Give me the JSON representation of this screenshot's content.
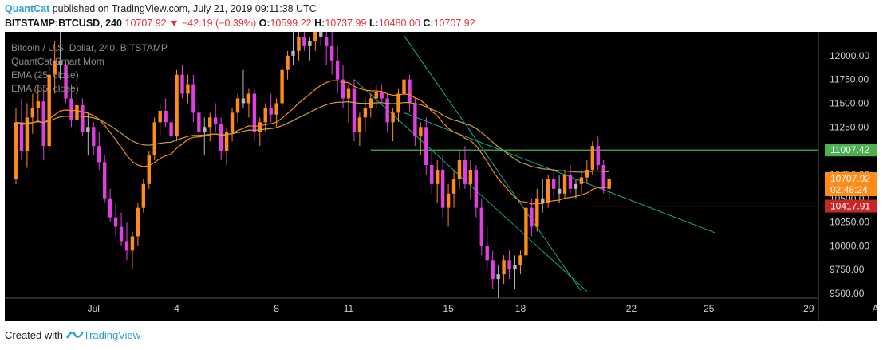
{
  "header": {
    "author": "QuantCat",
    "published": "published on TradingView.com, July 21, 2019 09:11:38 UTC",
    "symbol": "BITSTAMP:BTCUSD, 240",
    "last": "10707.92",
    "change_arrow": "▼",
    "change": "−42.19 (−0.39%)",
    "o_label": "O:",
    "o_val": "10599.22",
    "h_label": "H:",
    "h_val": "10737.99",
    "l_label": "L:",
    "l_val": "10480.00",
    "c_label": "C:",
    "c_val": "10707.92"
  },
  "legend": {
    "title": "Bitcoin / U.S. Dollar, 240, BITSTAMP",
    "indicator1": "QuantCat Smart Mom",
    "indicator2": "EMA (25, close)",
    "indicator3": "EMA (55, close)"
  },
  "footer": {
    "created_with": "Created with",
    "brand": "TradingView"
  },
  "colors": {
    "background": "#000000",
    "bull_candle": "#ff8c1a",
    "bear_candle": "#e040e0",
    "neutral_candle": "#b8b8b8",
    "ema25": "#ff8c1a",
    "ema55": "#c8a040",
    "trendline": "#1aa890",
    "resistance": "#4caf50",
    "support": "#c62828",
    "axis_text": "#d0d0d0"
  },
  "chart_data": {
    "type": "candlestick",
    "title": "Bitcoin / U.S. Dollar, 240, BITSTAMP",
    "ylim": [
      9450,
      12250
    ],
    "y_ticks": [
      "12000.00",
      "11750.00",
      "11500.00",
      "11250.00",
      "11000.00",
      "10750.00",
      "10500.00",
      "10250.00",
      "10000.00",
      "9750.00",
      "9500.00"
    ],
    "x_ticks": [
      "Jul",
      "4",
      "8",
      "11",
      "15",
      "18",
      "22",
      "25",
      "29",
      "Aug"
    ],
    "x_tick_index": [
      14,
      29,
      47,
      60,
      78,
      91,
      111,
      125,
      143,
      156
    ],
    "price_labels": [
      {
        "text": "11007.42",
        "price": 11007.42,
        "color": "#4caf50"
      },
      {
        "text": "10707.92",
        "price": 10707.92,
        "color": "#ff8c1a"
      },
      {
        "text": "02:48:24",
        "price": 10590,
        "color": "#ff8c1a"
      },
      {
        "text": "10417.91",
        "price": 10417.91,
        "color": "#c62828"
      }
    ],
    "horizontal_lines": [
      {
        "name": "resistance",
        "price": 11007.42,
        "from_index": 64,
        "color": "#4caf50"
      },
      {
        "name": "support",
        "price": 10417.91,
        "from_index": 104,
        "color": "#c62828"
      }
    ],
    "trendlines": [
      {
        "from": [
          61,
          11750
        ],
        "to": [
          103,
          9520
        ]
      },
      {
        "from": [
          70,
          12210
        ],
        "to": [
          102,
          9520
        ]
      },
      {
        "from": [
          70,
          11400
        ],
        "to": [
          126,
          10140
        ]
      }
    ],
    "candles": [
      [
        10700,
        11450,
        10650,
        11300
      ],
      [
        11300,
        11550,
        10900,
        11000
      ],
      [
        11000,
        11500,
        10820,
        11350
      ],
      [
        11350,
        11600,
        11180,
        11450
      ],
      [
        11450,
        11700,
        11300,
        11520
      ],
      [
        11520,
        11650,
        10900,
        11050
      ],
      [
        11050,
        11900,
        11000,
        11800
      ],
      [
        11800,
        12150,
        11600,
        11950
      ],
      [
        11950,
        12250,
        11750,
        11900
      ],
      [
        11900,
        11950,
        11500,
        11550
      ],
      [
        11550,
        11700,
        11250,
        11320
      ],
      [
        11320,
        11600,
        11200,
        11480
      ],
      [
        11480,
        11550,
        11150,
        11200
      ],
      [
        11200,
        11400,
        10950,
        11250
      ],
      [
        11250,
        11300,
        10950,
        11050
      ],
      [
        11050,
        11200,
        10800,
        10880
      ],
      [
        10880,
        10950,
        10450,
        10500
      ],
      [
        10500,
        10600,
        10250,
        10300
      ],
      [
        10300,
        10450,
        10100,
        10200
      ],
      [
        10200,
        10350,
        10000,
        10050
      ],
      [
        10050,
        10250,
        9850,
        9950
      ],
      [
        9950,
        10150,
        9750,
        10100
      ],
      [
        10100,
        10450,
        10000,
        10400
      ],
      [
        10400,
        10700,
        10350,
        10650
      ],
      [
        10650,
        11000,
        10600,
        10950
      ],
      [
        10950,
        11350,
        10900,
        11300
      ],
      [
        11300,
        11500,
        11150,
        11420
      ],
      [
        11420,
        11550,
        11250,
        11300
      ],
      [
        11300,
        11450,
        11100,
        11150
      ],
      [
        11150,
        11850,
        11100,
        11800
      ],
      [
        11800,
        11900,
        11550,
        11600
      ],
      [
        11600,
        11800,
        11500,
        11700
      ],
      [
        11700,
        11800,
        11300,
        11400
      ],
      [
        11400,
        11500,
        11100,
        11200
      ],
      [
        11200,
        11350,
        10950,
        11250
      ],
      [
        11250,
        11400,
        11100,
        11350
      ],
      [
        11350,
        11500,
        11200,
        11280
      ],
      [
        11280,
        11350,
        10900,
        11000
      ],
      [
        11000,
        11250,
        10850,
        11200
      ],
      [
        11200,
        11450,
        11100,
        11400
      ],
      [
        11400,
        11600,
        11300,
        11550
      ],
      [
        11550,
        11850,
        11450,
        11500
      ],
      [
        11500,
        11650,
        11350,
        11600
      ],
      [
        11600,
        11650,
        11100,
        11200
      ],
      [
        11200,
        11350,
        11050,
        11300
      ],
      [
        11300,
        11500,
        11200,
        11450
      ],
      [
        11450,
        11600,
        11300,
        11380
      ],
      [
        11380,
        11550,
        11250,
        11500
      ],
      [
        11500,
        11900,
        11450,
        11850
      ],
      [
        11850,
        12050,
        11750,
        12000
      ],
      [
        12000,
        12250,
        11900,
        12050
      ],
      [
        12050,
        12300,
        11950,
        12200
      ],
      [
        12200,
        12350,
        12050,
        12100
      ],
      [
        12100,
        12200,
        11950,
        12150
      ],
      [
        12150,
        12350,
        12050,
        12250
      ],
      [
        12250,
        12350,
        12100,
        12200
      ],
      [
        12200,
        12300,
        11900,
        12100
      ],
      [
        12100,
        12250,
        11800,
        11950
      ],
      [
        11950,
        12100,
        11600,
        11750
      ],
      [
        11750,
        11900,
        11450,
        11550
      ],
      [
        11550,
        11700,
        11300,
        11650
      ],
      [
        11650,
        11750,
        11100,
        11200
      ],
      [
        11200,
        11400,
        11050,
        11350
      ],
      [
        11350,
        11550,
        11200,
        11450
      ],
      [
        11450,
        11600,
        11350,
        11550
      ],
      [
        11550,
        11700,
        11450,
        11620
      ],
      [
        11620,
        11700,
        11500,
        11550
      ],
      [
        11550,
        11600,
        11200,
        11300
      ],
      [
        11300,
        11450,
        11100,
        11400
      ],
      [
        11400,
        11650,
        11300,
        11600
      ],
      [
        11600,
        11800,
        11500,
        11750
      ],
      [
        11750,
        11800,
        11400,
        11500
      ],
      [
        11500,
        11550,
        11050,
        11150
      ],
      [
        11150,
        11300,
        10950,
        11250
      ],
      [
        11250,
        11350,
        10750,
        10850
      ],
      [
        10850,
        11000,
        10550,
        10650
      ],
      [
        10650,
        10900,
        10450,
        10800
      ],
      [
        10800,
        10950,
        10300,
        10400
      ],
      [
        10400,
        10650,
        10200,
        10550
      ],
      [
        10550,
        10800,
        10400,
        10700
      ],
      [
        10700,
        11000,
        10600,
        10900
      ],
      [
        10900,
        11050,
        10600,
        10650
      ],
      [
        10650,
        10900,
        10500,
        10800
      ],
      [
        10800,
        10850,
        10300,
        10400
      ],
      [
        10400,
        10500,
        9900,
        10000
      ],
      [
        10000,
        10200,
        9750,
        9850
      ],
      [
        9850,
        9950,
        9550,
        9650
      ],
      [
        9650,
        9800,
        9450,
        9700
      ],
      [
        9700,
        9900,
        9600,
        9850
      ],
      [
        9850,
        9950,
        9650,
        9750
      ],
      [
        9750,
        9900,
        9550,
        9800
      ],
      [
        9800,
        9950,
        9700,
        9900
      ],
      [
        9900,
        10450,
        9850,
        10400
      ],
      [
        10400,
        10500,
        10100,
        10200
      ],
      [
        10200,
        10600,
        10150,
        10500
      ],
      [
        10500,
        10700,
        10350,
        10450
      ],
      [
        10450,
        10750,
        10400,
        10700
      ],
      [
        10700,
        10800,
        10500,
        10600
      ],
      [
        10600,
        10750,
        10450,
        10550
      ],
      [
        10550,
        10800,
        10500,
        10750
      ],
      [
        10750,
        10850,
        10550,
        10600
      ],
      [
        10600,
        10700,
        10500,
        10650
      ],
      [
        10650,
        10800,
        10550,
        10720
      ],
      [
        10720,
        10900,
        10650,
        10800
      ],
      [
        10800,
        11100,
        10750,
        11050
      ],
      [
        11050,
        11150,
        10800,
        10850
      ],
      [
        10850,
        10900,
        10550,
        10600
      ],
      [
        10600,
        10750,
        10480,
        10708
      ]
    ]
  }
}
